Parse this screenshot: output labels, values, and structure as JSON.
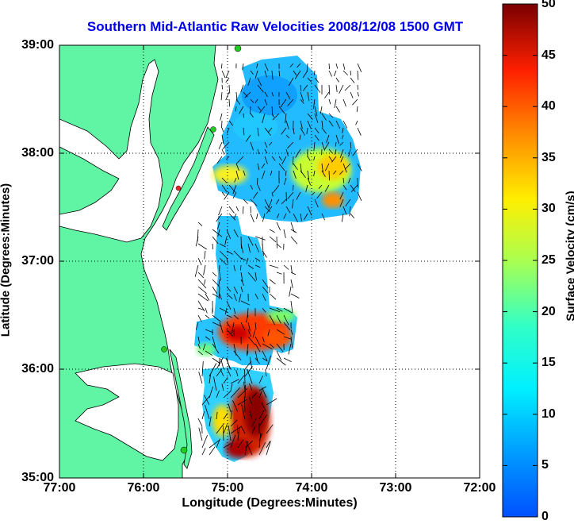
{
  "title": "Southern Mid-Atlantic Raw Velocities 2008/12/08 1500 GMT",
  "x_axis": {
    "label": "Longitude (Degrees:Minutes)",
    "ticks": [
      "77:00",
      "76:00",
      "75:00",
      "74:00",
      "73:00",
      "72:00"
    ]
  },
  "y_axis": {
    "label": "Latitude (Degrees:Minutes)",
    "ticks": [
      "39:00",
      "38:00",
      "37:00",
      "36:00",
      "35:00"
    ]
  },
  "colorbar": {
    "label": "Surface Velocity (cm/s)",
    "ticks": [
      "50",
      "45",
      "40",
      "35",
      "30",
      "25",
      "20",
      "15",
      "10",
      "5",
      "0"
    ],
    "range": [
      0,
      50
    ],
    "colormap": "jet"
  },
  "map": {
    "lon_range": [
      -77,
      -72
    ],
    "lat_range": [
      35,
      39
    ],
    "grid": true,
    "land_color": "#5ff5a5",
    "bathymetry_color": "#9a9a9a",
    "station_color": "#22cc22",
    "highlight_station_color": "#ee2222"
  }
}
